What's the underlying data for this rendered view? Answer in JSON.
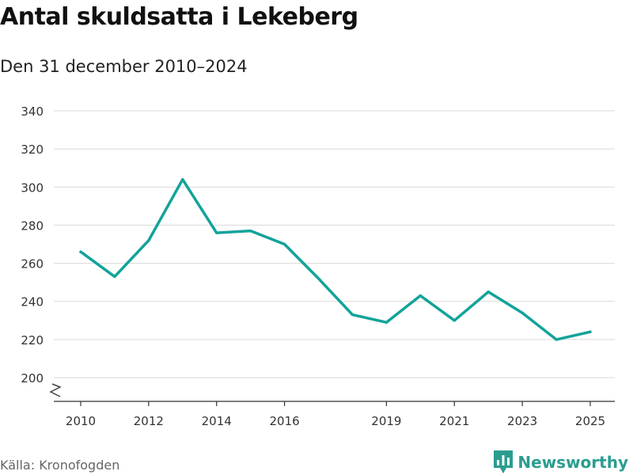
{
  "header": {
    "title": "Antal skuldsatta i Lekeberg",
    "subtitle": "Den 31 december 2010–2024"
  },
  "footer": {
    "source": "Källa: Kronofogden",
    "brand": "Newsworthy",
    "brand_icon": "newsworthy-logo-icon"
  },
  "colors": {
    "line": "#12a39a",
    "grid": "#d9d9d9",
    "axis": "#333333",
    "brand": "#2a9d8f"
  },
  "chart_data": {
    "type": "line",
    "title": "Antal skuldsatta i Lekeberg",
    "subtitle": "Den 31 december 2010–2024",
    "xlabel": "",
    "ylabel": "",
    "x": [
      2010,
      2011,
      2012,
      2013,
      2014,
      2015,
      2016,
      2017,
      2018,
      2019,
      2020,
      2021,
      2022,
      2023,
      2024,
      2025
    ],
    "series": [
      {
        "name": "Antal skuldsatta",
        "values": [
          266,
          253,
          272,
          304,
          276,
          277,
          270,
          252,
          233,
          229,
          243,
          230,
          245,
          234,
          220,
          224
        ]
      }
    ],
    "xticks": [
      2010,
      2012,
      2014,
      2016,
      2019,
      2021,
      2023,
      2025
    ],
    "yticks": [
      200,
      220,
      240,
      260,
      280,
      300,
      320,
      340
    ],
    "xlim": [
      2010,
      2025
    ],
    "ylim": [
      200,
      340
    ],
    "grid": true,
    "axis_break": true,
    "legend": "none"
  }
}
